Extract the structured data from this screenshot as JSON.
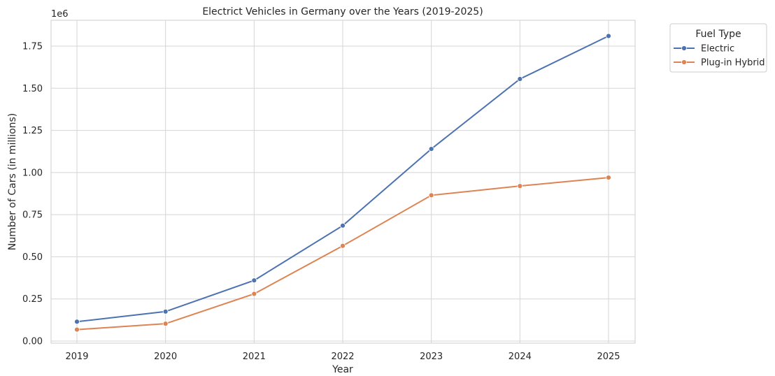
{
  "chart_data": {
    "type": "line",
    "title": "Electrict Vehicles in Germany over the Years (2019-2025)",
    "xlabel": "Year",
    "ylabel": "Number of Cars (in millions)",
    "y_offset_label": "1e6",
    "categories": [
      "2019",
      "2020",
      "2021",
      "2022",
      "2023",
      "2024",
      "2025"
    ],
    "ylim": [
      0,
      1.9
    ],
    "yticks": [
      "0.00",
      "0.25",
      "0.50",
      "0.75",
      "1.00",
      "1.25",
      "1.50",
      "1.75"
    ],
    "ytick_values": [
      0,
      0.25,
      0.5,
      0.75,
      1.0,
      1.25,
      1.5,
      1.75
    ],
    "grid": true,
    "legend": {
      "title": "Fuel Type",
      "placement": "outside-top-right"
    },
    "series": [
      {
        "name": "Electric",
        "color": "#4c72b0",
        "values": [
          0.115,
          0.175,
          0.36,
          0.685,
          1.14,
          1.555,
          1.81
        ]
      },
      {
        "name": "Plug-in Hybrid",
        "color": "#dd8452",
        "values": [
          0.068,
          0.103,
          0.28,
          0.565,
          0.865,
          0.92,
          0.97
        ]
      }
    ]
  }
}
